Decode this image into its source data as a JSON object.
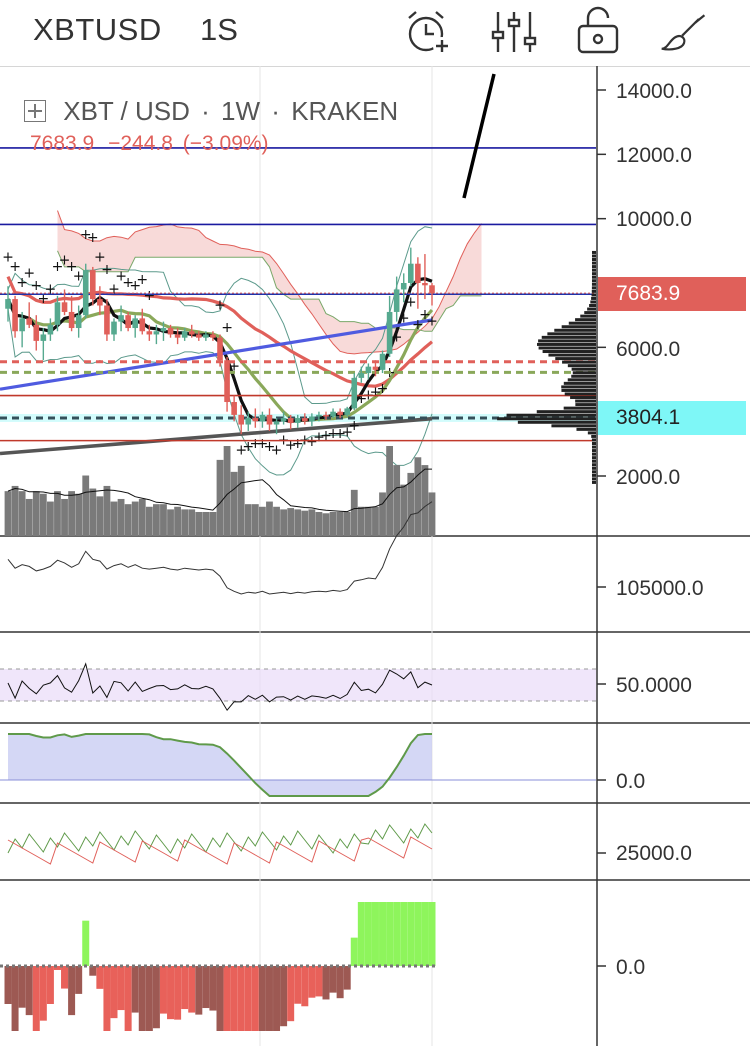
{
  "toolbar": {
    "symbol": "XBTUSD",
    "interval": "1S",
    "icons": [
      "alarm-add-icon",
      "indicators-icon",
      "unlock-icon",
      "drawing-brush-icon"
    ]
  },
  "legend": {
    "pair": "XBT / USD",
    "sep1": "·",
    "timeframe": "1W",
    "sep2": "·",
    "exchange": "KRAKEN",
    "last": "7683.9",
    "change": "−244.8",
    "change_pct": "(−3.09%)"
  },
  "colors": {
    "up": "#56a98f",
    "down": "#e0605a",
    "cloud_bull": "#d9ead3",
    "cloud_bear": "#f7d3d2",
    "ma_blue": "#4f5be0",
    "ma_red": "#e0605a",
    "ma_green": "#8aa85a",
    "price_tag": "#e0605a",
    "support_tag": "#7ef7f7",
    "macd_up": "#8ef55c",
    "macd_down": "#e8615a",
    "macd_dark": "#9d5953"
  },
  "chart_data": [
    {
      "type": "line",
      "title": "XBT / USD · 1W · KRAKEN",
      "yticks": [
        "14000.0",
        "12000.0",
        "10000.0",
        "6000.0",
        "2000.0"
      ],
      "ylim": [
        1000,
        14800
      ],
      "last_price_label": "7683.9",
      "support_label": "3804.1",
      "horizontal_levels": [
        12200,
        9820,
        7650,
        4500,
        3100
      ],
      "dashed_levels": [
        5550,
        5220,
        3804.1
      ],
      "candles": [
        [
          7200,
          7900,
          6800,
          7500
        ],
        [
          7500,
          7600,
          6300,
          6500
        ],
        [
          6500,
          7100,
          6000,
          6900
        ],
        [
          6900,
          7400,
          6600,
          6700
        ],
        [
          6700,
          7000,
          5900,
          6200
        ],
        [
          6200,
          6600,
          5600,
          6400
        ],
        [
          6400,
          6900,
          6200,
          6700
        ],
        [
          6700,
          7600,
          6500,
          7400
        ],
        [
          7400,
          7800,
          7000,
          7100
        ],
        [
          7100,
          7600,
          6500,
          6600
        ],
        [
          6600,
          7300,
          6300,
          7000
        ],
        [
          7000,
          8600,
          6900,
          8400
        ],
        [
          8400,
          8500,
          7300,
          7500
        ],
        [
          7500,
          7900,
          7000,
          7300
        ],
        [
          7300,
          7500,
          6200,
          6400
        ],
        [
          6400,
          6900,
          6200,
          6800
        ],
        [
          6800,
          7300,
          6500,
          7000
        ],
        [
          7000,
          7100,
          6500,
          6600
        ],
        [
          6600,
          7000,
          6300,
          6900
        ],
        [
          6900,
          7200,
          6400,
          6500
        ],
        [
          6500,
          6700,
          6200,
          6400
        ],
        [
          6400,
          6700,
          6100,
          6500
        ],
        [
          6500,
          6800,
          6200,
          6600
        ],
        [
          6600,
          6700,
          6300,
          6400
        ],
        [
          6400,
          6600,
          6100,
          6300
        ],
        [
          6300,
          6600,
          6200,
          6500
        ],
        [
          6500,
          6700,
          6300,
          6400
        ],
        [
          6400,
          6500,
          6200,
          6300
        ],
        [
          6300,
          6500,
          6200,
          6400
        ],
        [
          6400,
          6500,
          6200,
          6300
        ],
        [
          6300,
          6400,
          5400,
          5600
        ],
        [
          5600,
          5700,
          4000,
          4300
        ],
        [
          4300,
          4500,
          3700,
          3900
        ],
        [
          3900,
          4200,
          3300,
          3600
        ],
        [
          3600,
          4000,
          3400,
          3800
        ],
        [
          3800,
          4100,
          3500,
          3700
        ],
        [
          3700,
          4000,
          3500,
          3900
        ],
        [
          3900,
          4100,
          3400,
          3600
        ],
        [
          3600,
          3800,
          3300,
          3700
        ],
        [
          3700,
          4000,
          3600,
          3800
        ],
        [
          3800,
          3900,
          3450,
          3650
        ],
        [
          3650,
          3900,
          3500,
          3800
        ],
        [
          3800,
          3950,
          3600,
          3700
        ],
        [
          3700,
          3950,
          3550,
          3850
        ],
        [
          3850,
          4000,
          3700,
          3900
        ],
        [
          3900,
          4000,
          3750,
          3850
        ],
        [
          3850,
          4100,
          3800,
          4000
        ],
        [
          4000,
          4100,
          3800,
          3900
        ],
        [
          3900,
          4150,
          3850,
          4100
        ],
        [
          4100,
          5200,
          4050,
          5050
        ],
        [
          5050,
          5400,
          4900,
          5200
        ],
        [
          5200,
          5500,
          5000,
          5400
        ],
        [
          5400,
          5600,
          5100,
          5300
        ],
        [
          5300,
          5900,
          5200,
          5800
        ],
        [
          5800,
          7600,
          5700,
          7100
        ],
        [
          7100,
          8200,
          6800,
          7800
        ],
        [
          7800,
          8300,
          7400,
          8000
        ],
        [
          8000,
          9100,
          7900,
          8600
        ],
        [
          8600,
          8800,
          7200,
          8000
        ],
        [
          8000,
          8900,
          7500,
          7928.7
        ],
        [
          7928.7,
          8000,
          7300,
          7683.9
        ]
      ],
      "pane_ticks": [
        {
          "pane": "obv",
          "label": "105000.0"
        },
        {
          "pane": "rsi",
          "label": "50.0000"
        },
        {
          "pane": "osc",
          "label": "0.0"
        },
        {
          "pane": "dmi",
          "label": "25000.0"
        },
        {
          "pane": "macd",
          "label": "0.0"
        }
      ]
    }
  ]
}
